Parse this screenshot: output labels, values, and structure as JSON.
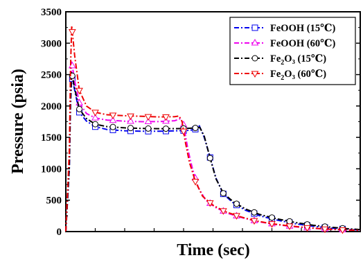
{
  "chart_data": {
    "type": "line",
    "xlabel": "Time (sec)",
    "ylabel": "Pressure (psia)",
    "ylim": [
      0,
      3500
    ],
    "yticks": [
      "0",
      "500",
      "1000",
      "1500",
      "2000",
      "2500",
      "3000",
      "3500"
    ],
    "x_tick_labels_shown": false,
    "x_range_relative": [
      0,
      1
    ],
    "grid": false,
    "legend_position": "top-right",
    "series": [
      {
        "name": "FeOOH (15℃)",
        "color": "#0000ee",
        "marker": "square",
        "line_style": "dash-dot",
        "points": [
          [
            0.0,
            0
          ],
          [
            0.012,
            1000
          ],
          [
            0.016,
            2000
          ],
          [
            0.02,
            2480
          ],
          [
            0.03,
            2250
          ],
          [
            0.046,
            1900
          ],
          [
            0.07,
            1760
          ],
          [
            0.1,
            1670
          ],
          [
            0.14,
            1625
          ],
          [
            0.2,
            1605
          ],
          [
            0.26,
            1598
          ],
          [
            0.32,
            1598
          ],
          [
            0.38,
            1605
          ],
          [
            0.42,
            1612
          ],
          [
            0.44,
            1630
          ],
          [
            0.452,
            1700
          ],
          [
            0.47,
            1500
          ],
          [
            0.49,
            1180
          ],
          [
            0.51,
            850
          ],
          [
            0.535,
            600
          ],
          [
            0.57,
            450
          ],
          [
            0.61,
            340
          ],
          [
            0.66,
            250
          ],
          [
            0.72,
            180
          ],
          [
            0.78,
            125
          ],
          [
            0.84,
            85
          ],
          [
            0.9,
            55
          ],
          [
            0.95,
            38
          ],
          [
            1.0,
            25
          ]
        ]
      },
      {
        "name": "FeOOH (60℃)",
        "color": "#ee00ee",
        "marker": "triangle-up",
        "line_style": "dash-dot",
        "points": [
          [
            0.0,
            0
          ],
          [
            0.012,
            1100
          ],
          [
            0.016,
            2200
          ],
          [
            0.02,
            2700
          ],
          [
            0.03,
            2400
          ],
          [
            0.046,
            2050
          ],
          [
            0.07,
            1880
          ],
          [
            0.1,
            1810
          ],
          [
            0.14,
            1775
          ],
          [
            0.2,
            1758
          ],
          [
            0.26,
            1750
          ],
          [
            0.32,
            1752
          ],
          [
            0.37,
            1765
          ],
          [
            0.39,
            1800
          ],
          [
            0.4,
            1700
          ],
          [
            0.415,
            1300
          ],
          [
            0.43,
            1000
          ],
          [
            0.45,
            700
          ],
          [
            0.475,
            500
          ],
          [
            0.51,
            380
          ],
          [
            0.55,
            290
          ],
          [
            0.6,
            220
          ],
          [
            0.65,
            160
          ],
          [
            0.71,
            115
          ],
          [
            0.77,
            80
          ],
          [
            0.83,
            55
          ],
          [
            0.89,
            38
          ],
          [
            0.95,
            25
          ],
          [
            1.0,
            18
          ]
        ]
      },
      {
        "name": "Fe₂O₃ (15℃)",
        "color": "#000000",
        "marker": "circle",
        "line_style": "dash-dot",
        "points": [
          [
            0.0,
            0
          ],
          [
            0.012,
            1050
          ],
          [
            0.016,
            2100
          ],
          [
            0.02,
            2530
          ],
          [
            0.03,
            2280
          ],
          [
            0.046,
            1950
          ],
          [
            0.07,
            1800
          ],
          [
            0.1,
            1710
          ],
          [
            0.14,
            1672
          ],
          [
            0.2,
            1652
          ],
          [
            0.26,
            1642
          ],
          [
            0.32,
            1638
          ],
          [
            0.38,
            1640
          ],
          [
            0.42,
            1645
          ],
          [
            0.44,
            1650
          ],
          [
            0.455,
            1660
          ],
          [
            0.47,
            1520
          ],
          [
            0.49,
            1170
          ],
          [
            0.51,
            840
          ],
          [
            0.535,
            610
          ],
          [
            0.57,
            470
          ],
          [
            0.61,
            360
          ],
          [
            0.66,
            270
          ],
          [
            0.72,
            200
          ],
          [
            0.78,
            145
          ],
          [
            0.84,
            100
          ],
          [
            0.9,
            70
          ],
          [
            0.95,
            48
          ],
          [
            1.0,
            32
          ]
        ]
      },
      {
        "name": "Fe₂O₃ (60℃)",
        "color": "#ee0000",
        "marker": "triangle-down",
        "line_style": "dash-dot",
        "points": [
          [
            0.0,
            0
          ],
          [
            0.012,
            1300
          ],
          [
            0.016,
            2600
          ],
          [
            0.02,
            3280
          ],
          [
            0.03,
            2800
          ],
          [
            0.046,
            2250
          ],
          [
            0.07,
            2000
          ],
          [
            0.1,
            1900
          ],
          [
            0.14,
            1860
          ],
          [
            0.2,
            1845
          ],
          [
            0.26,
            1835
          ],
          [
            0.32,
            1825
          ],
          [
            0.37,
            1830
          ],
          [
            0.385,
            1840
          ],
          [
            0.395,
            1750
          ],
          [
            0.405,
            1450
          ],
          [
            0.42,
            1100
          ],
          [
            0.44,
            800
          ],
          [
            0.465,
            560
          ],
          [
            0.5,
            420
          ],
          [
            0.54,
            320
          ],
          [
            0.59,
            240
          ],
          [
            0.64,
            175
          ],
          [
            0.7,
            125
          ],
          [
            0.76,
            90
          ],
          [
            0.82,
            62
          ],
          [
            0.88,
            42
          ],
          [
            0.94,
            28
          ],
          [
            1.0,
            20
          ]
        ]
      }
    ]
  }
}
